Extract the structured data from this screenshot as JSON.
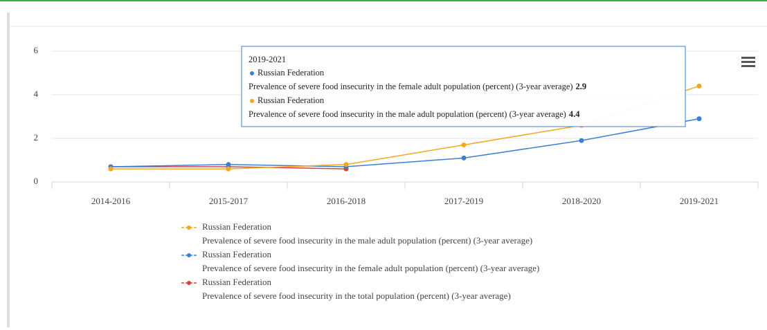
{
  "chart_data": {
    "type": "line",
    "categories": [
      "2014-2016",
      "2015-2017",
      "2016-2018",
      "2017-2019",
      "2018-2020",
      "2019-2021"
    ],
    "series": [
      {
        "name": "Russian Federation",
        "description": "Prevalence of severe food insecurity in the male adult population (percent) (3-year average)",
        "color": "#f7a520",
        "values": [
          0.6,
          0.6,
          0.8,
          1.7,
          2.6,
          4.4
        ]
      },
      {
        "name": "Russian Federation",
        "description": "Prevalence of severe food insecurity in the female adult population (percent) (3-year average)",
        "color": "#3a7fd5",
        "values": [
          0.7,
          0.8,
          0.7,
          1.1,
          1.9,
          2.9
        ]
      },
      {
        "name": "Russian Federation",
        "description": "Prevalence of severe food insecurity in the total population (percent) (3-year average)",
        "color": "#d94040",
        "values": [
          0.7,
          0.7,
          0.6,
          null,
          null,
          null
        ]
      }
    ],
    "ylim": [
      0,
      6
    ],
    "yticks": [
      0,
      2,
      4,
      6
    ],
    "grid": true,
    "tooltip": {
      "category": 5,
      "order": [
        1,
        0
      ]
    }
  }
}
